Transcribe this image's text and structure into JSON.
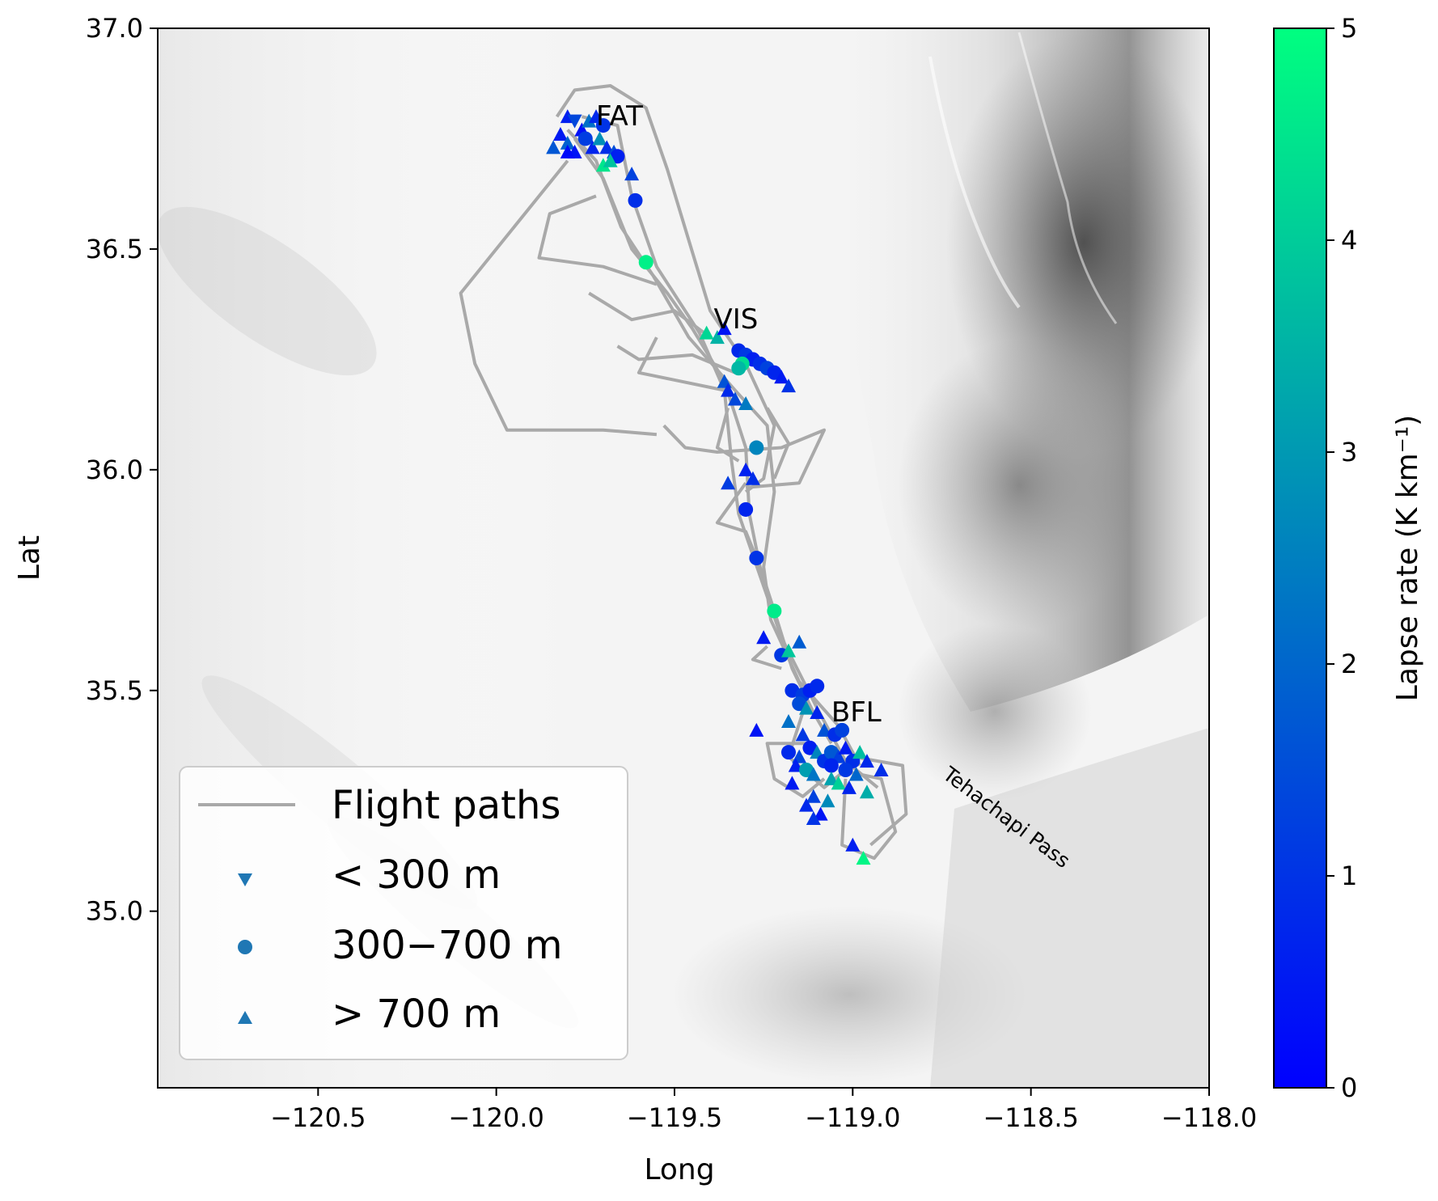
{
  "map": {
    "x_axis": {
      "label": "Long",
      "range": [
        -120.95,
        -118.0
      ],
      "ticks": [
        {
          "value": -120.5,
          "label": "−120.5"
        },
        {
          "value": -120.0,
          "label": "−120.0"
        },
        {
          "value": -119.5,
          "label": "−119.5"
        },
        {
          "value": -119.0,
          "label": "−119.0"
        },
        {
          "value": -118.5,
          "label": "−118.5"
        },
        {
          "value": -118.0,
          "label": "−118.0"
        }
      ]
    },
    "y_axis": {
      "label": "Lat",
      "range": [
        34.6,
        37.0
      ],
      "ticks": [
        {
          "value": 35.0,
          "label": "35.0"
        },
        {
          "value": 35.5,
          "label": "35.5"
        },
        {
          "value": 36.0,
          "label": "36.0"
        },
        {
          "value": 36.5,
          "label": "36.5"
        },
        {
          "value": 37.0,
          "label": "37.0"
        }
      ]
    },
    "places": [
      {
        "name": "FAT",
        "lon": -119.72,
        "lat": 36.78
      },
      {
        "name": "VIS",
        "lon": -119.39,
        "lat": 36.32
      },
      {
        "name": "BFL",
        "lon": -119.06,
        "lat": 35.43
      }
    ],
    "terrain_label": {
      "text": "Tehachapi Pass",
      "lon": -118.58,
      "lat": 35.2
    },
    "colorbar": {
      "label": "Lapse rate (K km⁻¹)",
      "range": [
        0,
        5
      ],
      "ticks": [
        "0",
        "1",
        "2",
        "3",
        "4",
        "5"
      ],
      "colors": [
        "#0000ff",
        "#00ff80"
      ]
    },
    "legend": {
      "entries": [
        {
          "label": "Flight paths",
          "marker": "line",
          "color": "#a9a9a9"
        },
        {
          "label": "< 300 m",
          "marker": "triangle-down",
          "color": "#1f77b4"
        },
        {
          "label": "300−700 m",
          "marker": "circle",
          "color": "#1f77b4"
        },
        {
          "label": "> 700 m",
          "marker": "triangle-up",
          "color": "#1f77b4"
        }
      ]
    },
    "flight_path_color": "#a9a9a9",
    "flight_paths": [
      [
        [
          -119.78,
          36.75
        ],
        [
          -119.7,
          36.66
        ],
        [
          -119.62,
          36.5
        ],
        [
          -119.52,
          36.4
        ],
        [
          -119.45,
          36.32
        ],
        [
          -119.36,
          36.2
        ],
        [
          -119.3,
          36.05
        ],
        [
          -119.29,
          35.9
        ],
        [
          -119.26,
          35.78
        ],
        [
          -119.22,
          35.68
        ],
        [
          -119.17,
          35.55
        ],
        [
          -119.11,
          35.45
        ],
        [
          -119.06,
          35.38
        ]
      ],
      [
        [
          -119.8,
          36.77
        ],
        [
          -119.72,
          36.7
        ],
        [
          -119.65,
          36.55
        ],
        [
          -119.56,
          36.44
        ],
        [
          -119.46,
          36.3
        ],
        [
          -119.33,
          36.18
        ],
        [
          -119.24,
          36.1
        ],
        [
          -119.22,
          35.95
        ],
        [
          -119.25,
          35.78
        ],
        [
          -119.23,
          35.66
        ],
        [
          -119.15,
          35.52
        ],
        [
          -119.04,
          35.42
        ],
        [
          -118.98,
          35.33
        ]
      ],
      [
        [
          -119.76,
          36.8
        ],
        [
          -119.66,
          36.78
        ],
        [
          -119.62,
          36.62
        ],
        [
          -119.55,
          36.46
        ],
        [
          -119.43,
          36.31
        ],
        [
          -119.36,
          36.18
        ],
        [
          -119.34,
          36.02
        ],
        [
          -119.32,
          35.9
        ],
        [
          -119.26,
          35.76
        ],
        [
          -119.2,
          35.62
        ],
        [
          -119.1,
          35.46
        ],
        [
          -119.02,
          35.34
        ],
        [
          -118.93,
          35.28
        ]
      ],
      [
        [
          -119.83,
          36.8
        ],
        [
          -119.78,
          36.86
        ],
        [
          -119.68,
          36.87
        ],
        [
          -119.58,
          36.82
        ],
        [
          -119.52,
          36.68
        ],
        [
          -119.46,
          36.52
        ],
        [
          -119.4,
          36.36
        ],
        [
          -119.3,
          36.24
        ],
        [
          -119.22,
          36.1
        ],
        [
          -119.25,
          35.98
        ],
        [
          -119.3,
          35.95
        ]
      ],
      [
        [
          -119.8,
          36.7
        ],
        [
          -119.95,
          36.55
        ],
        [
          -120.1,
          36.4
        ],
        [
          -120.06,
          36.24
        ],
        [
          -119.97,
          36.09
        ],
        [
          -119.7,
          36.09
        ],
        [
          -119.55,
          36.08
        ]
      ],
      [
        [
          -119.72,
          36.62
        ],
        [
          -119.85,
          36.58
        ],
        [
          -119.88,
          36.48
        ],
        [
          -119.7,
          36.46
        ],
        [
          -119.55,
          36.42
        ]
      ],
      [
        [
          -119.74,
          36.4
        ],
        [
          -119.62,
          36.34
        ],
        [
          -119.5,
          36.36
        ],
        [
          -119.4,
          36.3
        ]
      ],
      [
        [
          -119.66,
          36.28
        ],
        [
          -119.6,
          36.25
        ],
        [
          -119.45,
          36.26
        ],
        [
          -119.33,
          36.22
        ]
      ],
      [
        [
          -119.55,
          36.3
        ],
        [
          -119.6,
          36.22
        ],
        [
          -119.48,
          36.2
        ],
        [
          -119.36,
          36.18
        ]
      ],
      [
        [
          -119.53,
          36.1
        ],
        [
          -119.47,
          36.05
        ],
        [
          -119.38,
          36.04
        ],
        [
          -119.2,
          36.05
        ],
        [
          -119.08,
          36.09
        ],
        [
          -119.15,
          35.97
        ],
        [
          -119.3,
          35.96
        ]
      ],
      [
        [
          -119.3,
          35.97
        ],
        [
          -119.38,
          35.88
        ],
        [
          -119.3,
          35.86
        ],
        [
          -119.27,
          35.8
        ]
      ],
      [
        [
          -119.35,
          36.14
        ],
        [
          -119.38,
          36.05
        ],
        [
          -119.32,
          36.02
        ]
      ],
      [
        [
          -119.24,
          36.14
        ],
        [
          -119.18,
          36.06
        ],
        [
          -119.22,
          35.98
        ]
      ],
      [
        [
          -119.24,
          35.6
        ],
        [
          -119.28,
          35.57
        ],
        [
          -119.2,
          35.55
        ]
      ],
      [
        [
          -119.12,
          35.38
        ],
        [
          -119.24,
          35.38
        ],
        [
          -119.22,
          35.3
        ],
        [
          -119.14,
          35.26
        ],
        [
          -119.08,
          35.3
        ]
      ],
      [
        [
          -119.04,
          35.32
        ],
        [
          -118.92,
          35.3
        ],
        [
          -118.88,
          35.18
        ],
        [
          -118.94,
          35.12
        ],
        [
          -119.03,
          35.15
        ],
        [
          -119.02,
          35.3
        ]
      ],
      [
        [
          -119.0,
          35.35
        ],
        [
          -118.86,
          35.33
        ],
        [
          -118.85,
          35.22
        ],
        [
          -118.95,
          35.15
        ]
      ],
      [
        [
          -119.14,
          35.45
        ],
        [
          -119.18,
          35.35
        ],
        [
          -119.08,
          35.28
        ],
        [
          -118.99,
          35.34
        ]
      ]
    ],
    "markers": [
      {
        "lon": -119.8,
        "lat": 36.8,
        "shape": "triangle-up",
        "rate": 0.6
      },
      {
        "lon": -119.78,
        "lat": 36.79,
        "shape": "triangle-down",
        "rate": 1.4
      },
      {
        "lon": -119.76,
        "lat": 36.77,
        "shape": "triangle-up",
        "rate": 0.3
      },
      {
        "lon": -119.74,
        "lat": 36.79,
        "shape": "triangle-up",
        "rate": 2.2
      },
      {
        "lon": -119.72,
        "lat": 36.8,
        "shape": "triangle-up",
        "rate": 0.8
      },
      {
        "lon": -119.7,
        "lat": 36.78,
        "shape": "circle",
        "rate": 1.0
      },
      {
        "lon": -119.82,
        "lat": 36.76,
        "shape": "triangle-up",
        "rate": 0.5
      },
      {
        "lon": -119.8,
        "lat": 36.74,
        "shape": "triangle-up",
        "rate": 1.9
      },
      {
        "lon": -119.78,
        "lat": 36.72,
        "shape": "triangle-up",
        "rate": 0.4
      },
      {
        "lon": -119.75,
        "lat": 36.75,
        "shape": "circle",
        "rate": 1.2
      },
      {
        "lon": -119.73,
        "lat": 36.73,
        "shape": "triangle-up",
        "rate": 0.7
      },
      {
        "lon": -119.71,
        "lat": 36.75,
        "shape": "triangle-up",
        "rate": 2.8
      },
      {
        "lon": -119.69,
        "lat": 36.73,
        "shape": "triangle-up",
        "rate": 0.9
      },
      {
        "lon": -119.67,
        "lat": 36.72,
        "shape": "triangle-up",
        "rate": 1.5
      },
      {
        "lon": -119.66,
        "lat": 36.71,
        "shape": "circle",
        "rate": 0.6
      },
      {
        "lon": -119.84,
        "lat": 36.73,
        "shape": "triangle-up",
        "rate": 1.7
      },
      {
        "lon": -119.8,
        "lat": 36.72,
        "shape": "triangle-up",
        "rate": 0.2
      },
      {
        "lon": -119.7,
        "lat": 36.69,
        "shape": "triangle-up",
        "rate": 4.5
      },
      {
        "lon": -119.68,
        "lat": 36.7,
        "shape": "triangle-up",
        "rate": 3.8
      },
      {
        "lon": -119.62,
        "lat": 36.67,
        "shape": "triangle-up",
        "rate": 1.3
      },
      {
        "lon": -119.61,
        "lat": 36.61,
        "shape": "circle",
        "rate": 0.9
      },
      {
        "lon": -119.58,
        "lat": 36.47,
        "shape": "circle",
        "rate": 4.7
      },
      {
        "lon": -119.41,
        "lat": 36.31,
        "shape": "triangle-up",
        "rate": 4.2
      },
      {
        "lon": -119.38,
        "lat": 36.3,
        "shape": "triangle-up",
        "rate": 3.5
      },
      {
        "lon": -119.36,
        "lat": 36.32,
        "shape": "triangle-up",
        "rate": 0.4
      },
      {
        "lon": -119.32,
        "lat": 36.27,
        "shape": "circle",
        "rate": 0.8
      },
      {
        "lon": -119.3,
        "lat": 36.26,
        "shape": "circle",
        "rate": 1.1
      },
      {
        "lon": -119.28,
        "lat": 36.25,
        "shape": "circle",
        "rate": 0.6
      },
      {
        "lon": -119.26,
        "lat": 36.24,
        "shape": "circle",
        "rate": 0.9
      },
      {
        "lon": -119.24,
        "lat": 36.23,
        "shape": "circle",
        "rate": 1.3
      },
      {
        "lon": -119.22,
        "lat": 36.22,
        "shape": "circle",
        "rate": 0.7
      },
      {
        "lon": -119.2,
        "lat": 36.21,
        "shape": "triangle-up",
        "rate": 0.5
      },
      {
        "lon": -119.18,
        "lat": 36.19,
        "shape": "triangle-up",
        "rate": 1.0
      },
      {
        "lon": -119.31,
        "lat": 36.24,
        "shape": "circle",
        "rate": 4.3
      },
      {
        "lon": -119.32,
        "lat": 36.23,
        "shape": "circle",
        "rate": 3.6
      },
      {
        "lon": -119.36,
        "lat": 36.2,
        "shape": "triangle-up",
        "rate": 1.6
      },
      {
        "lon": -119.35,
        "lat": 36.18,
        "shape": "triangle-up",
        "rate": 0.8
      },
      {
        "lon": -119.33,
        "lat": 36.16,
        "shape": "triangle-up",
        "rate": 1.4
      },
      {
        "lon": -119.3,
        "lat": 36.15,
        "shape": "triangle-up",
        "rate": 2.4
      },
      {
        "lon": -119.27,
        "lat": 36.05,
        "shape": "circle",
        "rate": 2.6
      },
      {
        "lon": -119.3,
        "lat": 36.0,
        "shape": "triangle-up",
        "rate": 0.6
      },
      {
        "lon": -119.28,
        "lat": 35.98,
        "shape": "triangle-up",
        "rate": 0.9
      },
      {
        "lon": -119.35,
        "lat": 35.97,
        "shape": "triangle-up",
        "rate": 1.2
      },
      {
        "lon": -119.3,
        "lat": 35.91,
        "shape": "circle",
        "rate": 0.7
      },
      {
        "lon": -119.27,
        "lat": 35.8,
        "shape": "circle",
        "rate": 1.0
      },
      {
        "lon": -119.22,
        "lat": 35.68,
        "shape": "circle",
        "rate": 4.6
      },
      {
        "lon": -119.25,
        "lat": 35.62,
        "shape": "triangle-up",
        "rate": 0.5
      },
      {
        "lon": -119.15,
        "lat": 35.61,
        "shape": "triangle-up",
        "rate": 1.8
      },
      {
        "lon": -119.2,
        "lat": 35.58,
        "shape": "circle",
        "rate": 1.1
      },
      {
        "lon": -119.18,
        "lat": 35.59,
        "shape": "triangle-up",
        "rate": 3.9
      },
      {
        "lon": -119.17,
        "lat": 35.5,
        "shape": "circle",
        "rate": 0.9
      },
      {
        "lon": -119.14,
        "lat": 35.49,
        "shape": "circle",
        "rate": 1.2
      },
      {
        "lon": -119.12,
        "lat": 35.5,
        "shape": "circle",
        "rate": 0.6
      },
      {
        "lon": -119.1,
        "lat": 35.51,
        "shape": "circle",
        "rate": 0.8
      },
      {
        "lon": -119.15,
        "lat": 35.47,
        "shape": "circle",
        "rate": 1.5
      },
      {
        "lon": -119.13,
        "lat": 35.46,
        "shape": "triangle-up",
        "rate": 2.9
      },
      {
        "lon": -119.1,
        "lat": 35.45,
        "shape": "triangle-up",
        "rate": 0.7
      },
      {
        "lon": -119.18,
        "lat": 35.43,
        "shape": "triangle-up",
        "rate": 2.2
      },
      {
        "lon": -119.27,
        "lat": 35.41,
        "shape": "triangle-up",
        "rate": 0.4
      },
      {
        "lon": -119.14,
        "lat": 35.4,
        "shape": "triangle-up",
        "rate": 1.1
      },
      {
        "lon": -119.08,
        "lat": 35.41,
        "shape": "triangle-up",
        "rate": 1.6
      },
      {
        "lon": -119.05,
        "lat": 35.4,
        "shape": "circle",
        "rate": 0.9
      },
      {
        "lon": -119.03,
        "lat": 35.41,
        "shape": "circle",
        "rate": 1.3
      },
      {
        "lon": -119.18,
        "lat": 35.36,
        "shape": "circle",
        "rate": 0.8
      },
      {
        "lon": -119.15,
        "lat": 35.35,
        "shape": "triangle-up",
        "rate": 1.4
      },
      {
        "lon": -119.12,
        "lat": 35.37,
        "shape": "circle",
        "rate": 0.6
      },
      {
        "lon": -119.1,
        "lat": 35.36,
        "shape": "triangle-up",
        "rate": 2.6
      },
      {
        "lon": -119.08,
        "lat": 35.34,
        "shape": "circle",
        "rate": 1.0
      },
      {
        "lon": -119.06,
        "lat": 35.36,
        "shape": "circle",
        "rate": 1.7
      },
      {
        "lon": -119.04,
        "lat": 35.35,
        "shape": "triangle-up",
        "rate": 1.2
      },
      {
        "lon": -119.02,
        "lat": 35.37,
        "shape": "triangle-up",
        "rate": 0.5
      },
      {
        "lon": -119.0,
        "lat": 35.34,
        "shape": "circle",
        "rate": 0.9
      },
      {
        "lon": -118.98,
        "lat": 35.36,
        "shape": "triangle-up",
        "rate": 3.7
      },
      {
        "lon": -118.96,
        "lat": 35.34,
        "shape": "triangle-up",
        "rate": 0.8
      },
      {
        "lon": -119.16,
        "lat": 35.33,
        "shape": "triangle-up",
        "rate": 0.6
      },
      {
        "lon": -119.13,
        "lat": 35.32,
        "shape": "circle",
        "rate": 3.1
      },
      {
        "lon": -119.11,
        "lat": 35.31,
        "shape": "triangle-up",
        "rate": 2.3
      },
      {
        "lon": -119.06,
        "lat": 35.33,
        "shape": "circle",
        "rate": 0.7
      },
      {
        "lon": -119.02,
        "lat": 35.32,
        "shape": "circle",
        "rate": 1.1
      },
      {
        "lon": -118.99,
        "lat": 35.31,
        "shape": "triangle-up",
        "rate": 2.0
      },
      {
        "lon": -118.92,
        "lat": 35.32,
        "shape": "triangle-up",
        "rate": 0.9
      },
      {
        "lon": -119.17,
        "lat": 35.29,
        "shape": "triangle-up",
        "rate": 0.5
      },
      {
        "lon": -119.06,
        "lat": 35.3,
        "shape": "triangle-up",
        "rate": 3.2
      },
      {
        "lon": -119.04,
        "lat": 35.29,
        "shape": "triangle-up",
        "rate": 4.1
      },
      {
        "lon": -119.01,
        "lat": 35.28,
        "shape": "triangle-up",
        "rate": 0.7
      },
      {
        "lon": -118.96,
        "lat": 35.27,
        "shape": "triangle-up",
        "rate": 3.4
      },
      {
        "lon": -119.11,
        "lat": 35.26,
        "shape": "triangle-up",
        "rate": 1.3
      },
      {
        "lon": -119.07,
        "lat": 35.25,
        "shape": "triangle-up",
        "rate": 2.7
      },
      {
        "lon": -119.13,
        "lat": 35.24,
        "shape": "triangle-up",
        "rate": 0.8
      },
      {
        "lon": -119.09,
        "lat": 35.22,
        "shape": "triangle-up",
        "rate": 0.4
      },
      {
        "lon": -119.11,
        "lat": 35.21,
        "shape": "triangle-up",
        "rate": 1.0
      },
      {
        "lon": -119.0,
        "lat": 35.15,
        "shape": "triangle-up",
        "rate": 0.6
      },
      {
        "lon": -118.97,
        "lat": 35.12,
        "shape": "triangle-up",
        "rate": 4.8
      }
    ]
  }
}
